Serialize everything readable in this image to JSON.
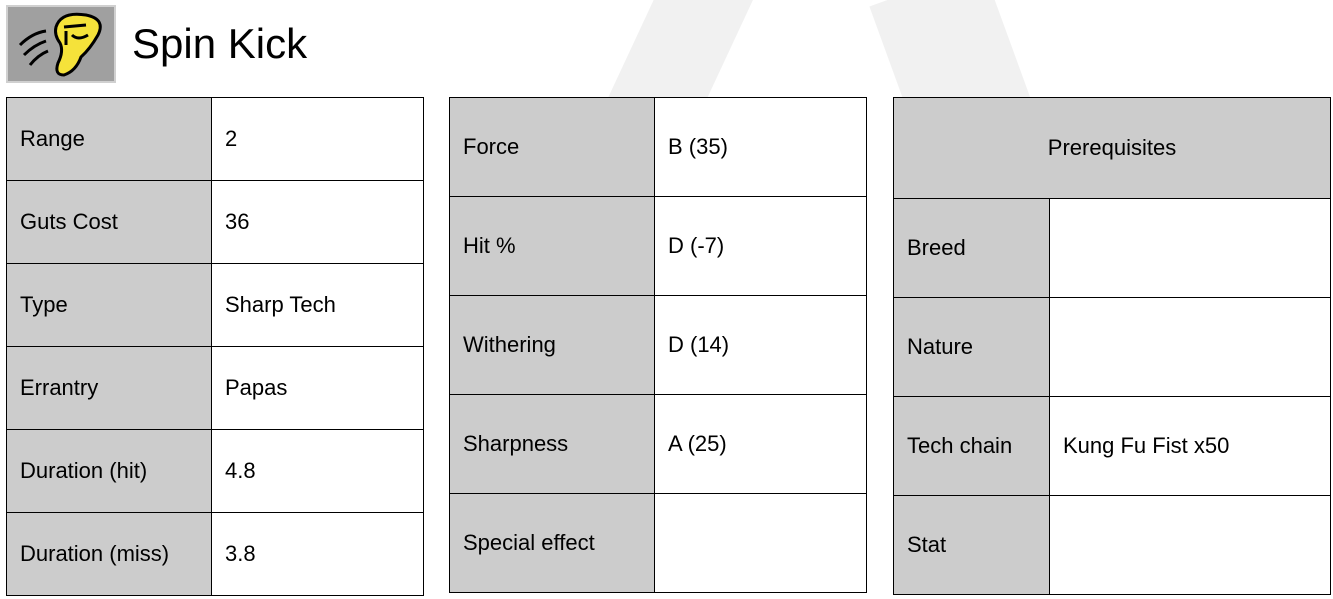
{
  "header": {
    "title": "Spin Kick",
    "icon": "spin-kick-technique-icon"
  },
  "stats": [
    {
      "label": "Range",
      "value": "2"
    },
    {
      "label": "Guts Cost",
      "value": "36"
    },
    {
      "label": "Type",
      "value": "Sharp Tech"
    },
    {
      "label": "Errantry",
      "value": "Papas"
    },
    {
      "label": "Duration (hit)",
      "value": "4.8"
    },
    {
      "label": "Duration (miss)",
      "value": "3.8"
    }
  ],
  "ratings": [
    {
      "label": "Force",
      "value": "B (35)"
    },
    {
      "label": "Hit %",
      "value": "D (-7)"
    },
    {
      "label": "Withering",
      "value": "D (14)"
    },
    {
      "label": "Sharpness",
      "value": "A (25)"
    },
    {
      "label": "Special effect",
      "value": ""
    }
  ],
  "prerequisites": {
    "heading": "Prerequisites",
    "rows": [
      {
        "label": "Breed",
        "value": ""
      },
      {
        "label": "Nature",
        "value": ""
      },
      {
        "label": "Tech chain",
        "value": "Kung Fu Fist x50"
      },
      {
        "label": "Stat",
        "value": ""
      }
    ]
  },
  "colors": {
    "header_cell": "#cccccc",
    "icon_yellow": "#f5e23a",
    "icon_bg": "#a0a0a0"
  }
}
